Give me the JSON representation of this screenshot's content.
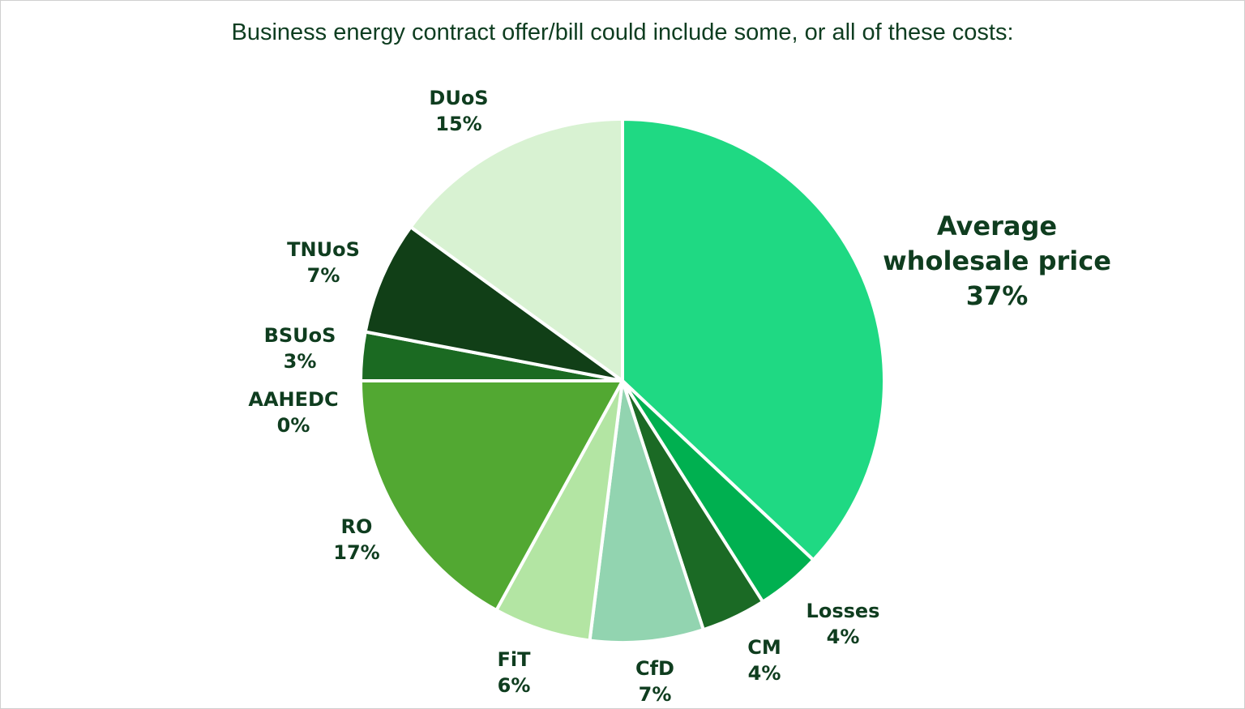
{
  "chart_data": {
    "type": "pie",
    "title": "Business energy contract offer/bill could include some, or all of these costs:",
    "start": "top",
    "direction": "clockwise",
    "slices": [
      {
        "label": "Average wholesale price",
        "value": 37,
        "display": "37%",
        "color": "#1fd983"
      },
      {
        "label": "Losses",
        "value": 4,
        "display": "4%",
        "color": "#00b050"
      },
      {
        "label": "CM",
        "value": 4,
        "display": "4%",
        "color": "#1b6a25"
      },
      {
        "label": "CfD",
        "value": 7,
        "display": "7%",
        "color": "#92d4b0"
      },
      {
        "label": "FiT",
        "value": 6,
        "display": "6%",
        "color": "#b3e5a3"
      },
      {
        "label": "RO",
        "value": 17,
        "display": "17%",
        "color": "#52a832"
      },
      {
        "label": "AAHEDC",
        "value": 0,
        "display": "0%",
        "color": "#2f7d2a"
      },
      {
        "label": "BSUoS",
        "value": 3,
        "display": "3%",
        "color": "#1b6a22"
      },
      {
        "label": "TNUoS",
        "value": 7,
        "display": "7%",
        "color": "#113f17"
      },
      {
        "label": "DUoS",
        "value": 15,
        "display": "15%",
        "color": "#d8f2d2"
      }
    ],
    "legend": "none",
    "label_color": "#0f3d1f"
  }
}
